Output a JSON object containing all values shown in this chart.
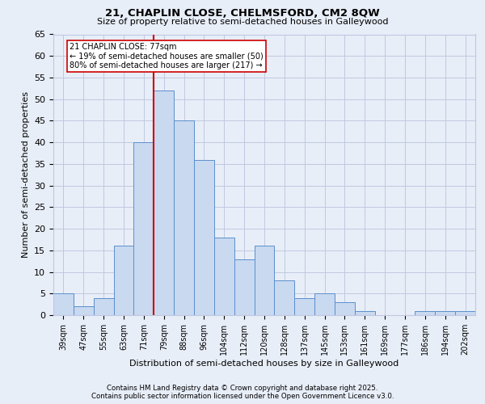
{
  "title1": "21, CHAPLIN CLOSE, CHELMSFORD, CM2 8QW",
  "title2": "Size of property relative to semi-detached houses in Galleywood",
  "xlabel": "Distribution of semi-detached houses by size in Galleywood",
  "ylabel": "Number of semi-detached properties",
  "footnote1": "Contains HM Land Registry data © Crown copyright and database right 2025.",
  "footnote2": "Contains public sector information licensed under the Open Government Licence v3.0.",
  "bin_labels": [
    "39sqm",
    "47sqm",
    "55sqm",
    "63sqm",
    "71sqm",
    "79sqm",
    "88sqm",
    "96sqm",
    "104sqm",
    "112sqm",
    "120sqm",
    "128sqm",
    "137sqm",
    "145sqm",
    "153sqm",
    "161sqm",
    "169sqm",
    "177sqm",
    "186sqm",
    "194sqm",
    "202sqm"
  ],
  "bar_values": [
    5,
    2,
    4,
    16,
    40,
    52,
    45,
    36,
    18,
    13,
    16,
    8,
    4,
    5,
    3,
    1,
    0,
    0,
    1,
    1,
    1
  ],
  "bar_color": "#c9d9f0",
  "bar_edge_color": "#5b8fcc",
  "grid_color": "#c0c8e0",
  "bg_color": "#e8eef8",
  "vline_color": "#cc0000",
  "annotation_text": "21 CHAPLIN CLOSE: 77sqm\n← 19% of semi-detached houses are smaller (50)\n80% of semi-detached houses are larger (217) →",
  "annotation_box_color": "#ffffff",
  "annotation_box_edge": "#cc0000",
  "ylim": [
    0,
    65
  ],
  "yticks": [
    0,
    5,
    10,
    15,
    20,
    25,
    30,
    35,
    40,
    45,
    50,
    55,
    60,
    65
  ]
}
